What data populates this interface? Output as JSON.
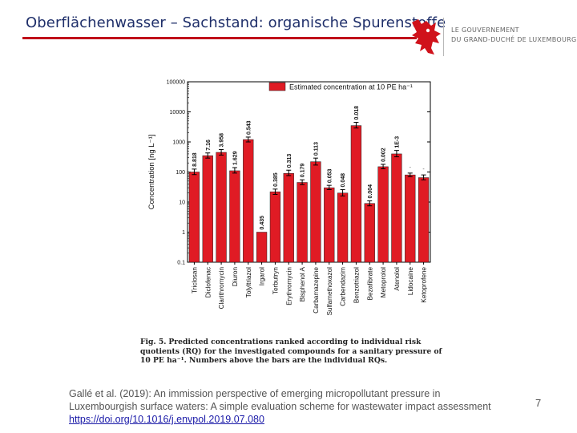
{
  "header": {
    "title": "Oberflächenwasser – Sachstand: organische Spurenstoffe",
    "gov_line1": "LE GOUVERNEMENT",
    "gov_line2": "DU GRAND-DUCHÉ DE LUXEMBOURG"
  },
  "colors": {
    "accent": "#c0101a",
    "title": "#1f2f6a",
    "bar": "#e01b24"
  },
  "chart_data": {
    "type": "bar",
    "title": "",
    "legend": "Estimated concentration at 10 PE ha⁻¹",
    "legend_position": "top-right",
    "xlabel": "",
    "ylabel": "Concentration [ng L⁻¹]",
    "yscale": "log",
    "ylim": [
      0.1,
      100000
    ],
    "yticks": [
      "0.1",
      "1",
      "10",
      "100",
      "1000",
      "10000",
      "100000"
    ],
    "categories": [
      "Triclosan",
      "Diclofenac",
      "Clarithromycin",
      "Diuron",
      "Tolyltriazol",
      "Irgarol",
      "Terbutryn",
      "Erythromycin",
      "Bisphenol A",
      "Carbamazepine",
      "Sulfamethoxazol",
      "Carbendazim",
      "Benzotriazol",
      "Bezafibrate",
      "Metoprolol",
      "Atenolol",
      "Lidocaine",
      "Ketoprofene"
    ],
    "values": [
      100,
      350,
      450,
      110,
      1200,
      1,
      22,
      90,
      45,
      220,
      30,
      20,
      3500,
      9,
      150,
      400,
      80,
      65
    ],
    "errors_upper": [
      125,
      430,
      560,
      140,
      1450,
      1,
      27,
      115,
      55,
      290,
      36,
      26,
      4500,
      11,
      180,
      520,
      92,
      80
    ],
    "errors_lower": [
      82,
      290,
      365,
      92,
      1000,
      1,
      18,
      76,
      38,
      170,
      26,
      16,
      2900,
      7.5,
      128,
      320,
      70,
      55
    ],
    "labels": [
      "8.818",
      "7.16",
      "3.958",
      "1.629",
      "0.543",
      "0.435",
      "0.385",
      "0.313",
      "0.179",
      "0.113",
      "0.053",
      "0.048",
      "0.018",
      "0.004",
      "0.002",
      "1E-3",
      "-",
      "-"
    ]
  },
  "caption": {
    "fig": "Fig. 5.",
    "text": "Predicted concentrations ranked according to individual risk quotients (RQ) for the investigated compounds for a sanitary pressure of 10 PE ha⁻¹. Numbers above the bars are the individual RQs."
  },
  "citation": {
    "text": "Gallé et al. (2019): An immission perspective of emerging micropollutant pressure in Luxembourgish surface waters: A simple evaluation scheme for wastewater impact assessment",
    "link": "https://doi.org/10.1016/j.envpol.2019.07.080"
  },
  "page_number": "7"
}
